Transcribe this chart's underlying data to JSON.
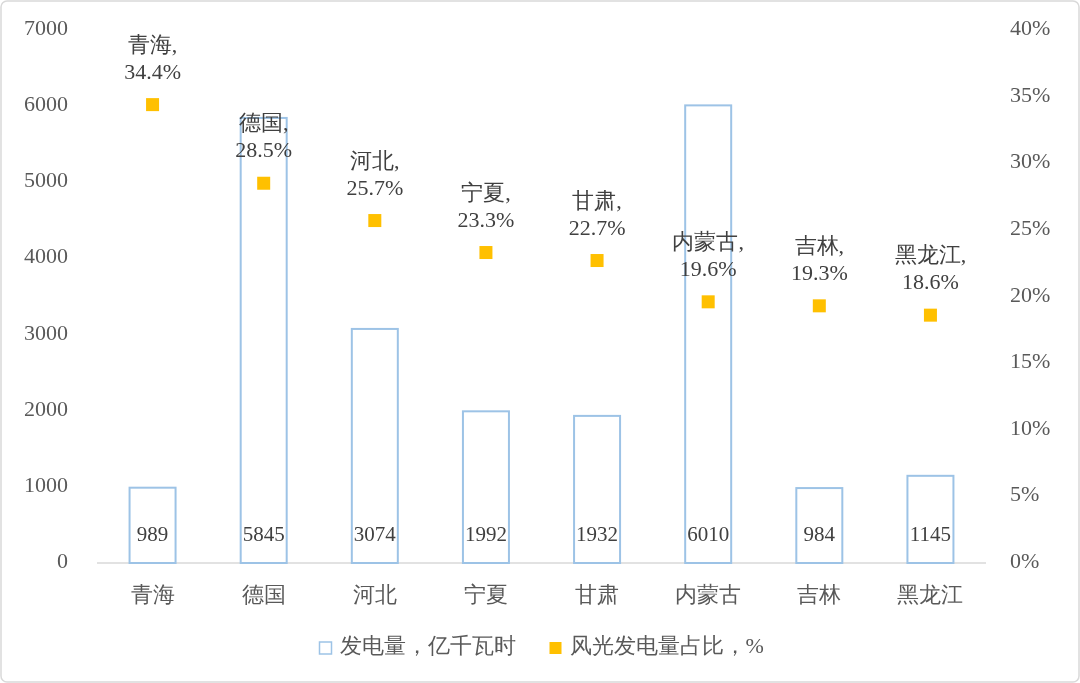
{
  "chart_data": {
    "type": "bar",
    "categories": [
      "青海",
      "德国",
      "河北",
      "宁夏",
      "甘肃",
      "内蒙古",
      "吉林",
      "黑龙江"
    ],
    "series": [
      {
        "name": "发电量，亿千瓦时",
        "color": "#9dc3e6",
        "values": [
          989,
          5845,
          3074,
          1992,
          1932,
          6010,
          984,
          1145
        ],
        "value_labels": [
          "989",
          "5845",
          "3074",
          "1992",
          "1932",
          "6010",
          "984",
          "1145"
        ]
      },
      {
        "name": "风光发电量占比，%",
        "type": "scatter",
        "axis": "y2",
        "color": "#ffc000",
        "values": [
          34.4,
          28.5,
          25.7,
          23.3,
          22.7,
          19.6,
          19.3,
          18.6
        ],
        "value_labels": [
          "青海, 34.4%",
          "德国, 28.5%",
          "河北, 25.7%",
          "宁夏, 23.3%",
          "甘肃, 22.7%",
          "内蒙古, 19.6%",
          "吉林, 19.3%",
          "黑龙江, 18.6%"
        ]
      }
    ],
    "ylim": [
      0,
      7000
    ],
    "yticks": [
      0,
      1000,
      2000,
      3000,
      4000,
      5000,
      6000,
      7000
    ],
    "y2lim": [
      0,
      40
    ],
    "y2ticks": [
      {
        "value": 0,
        "label": "0%"
      },
      {
        "value": 5,
        "label": "5%"
      },
      {
        "value": 10,
        "label": "10%"
      },
      {
        "value": 15,
        "label": "15%"
      },
      {
        "value": 20,
        "label": "20%"
      },
      {
        "value": 25,
        "label": "25%"
      },
      {
        "value": 30,
        "label": "30%"
      },
      {
        "value": 35,
        "label": "35%"
      },
      {
        "value": 40,
        "label": "40%"
      }
    ],
    "marker": "square",
    "legend": "bottom",
    "grid": false
  }
}
